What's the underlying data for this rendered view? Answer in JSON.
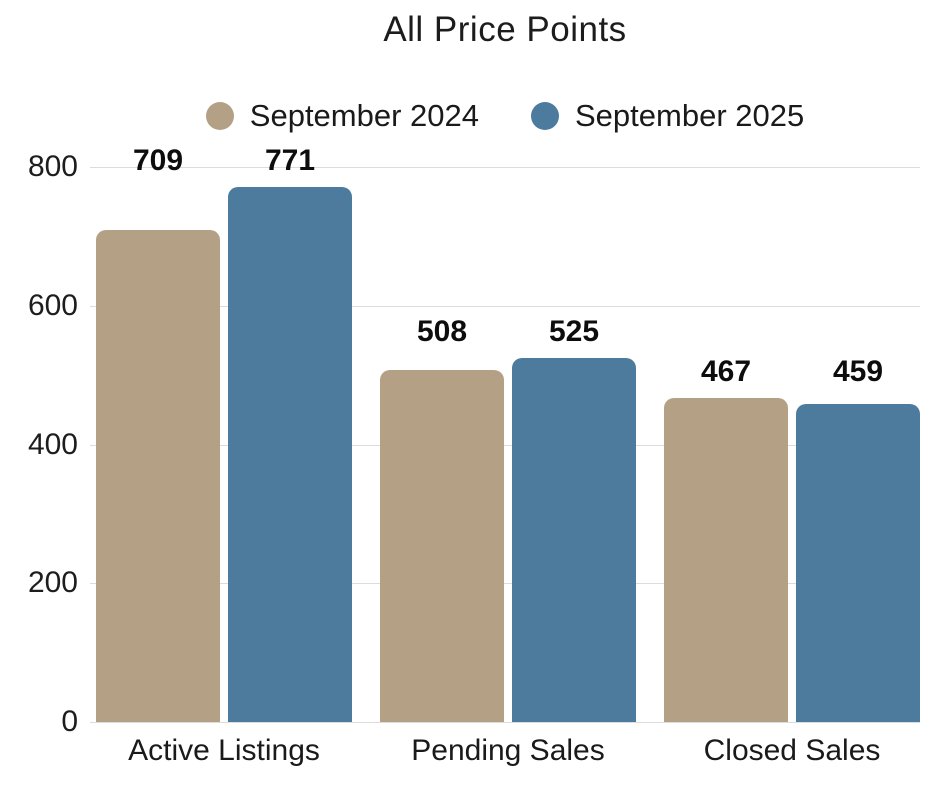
{
  "chart_data": {
    "type": "bar",
    "title": "All Price Points",
    "categories": [
      "Active Listings",
      "Pending Sales",
      "Closed Sales"
    ],
    "series": [
      {
        "name": "September 2024",
        "color": "#B4A084",
        "values": [
          709,
          508,
          467
        ]
      },
      {
        "name": "September 2025",
        "color": "#4D7B9E",
        "values": [
          771,
          525,
          459
        ]
      }
    ],
    "xlabel": "",
    "ylabel": "",
    "ylim": [
      0,
      800
    ],
    "yticks": [
      0,
      200,
      400,
      600,
      800
    ],
    "grid": true,
    "legend_position": "top",
    "value_labels_shown": true,
    "colors": {
      "background": "#FFFFFF",
      "grid": "#DCDCDC",
      "axis_text": "#1D1D1D",
      "title_text": "#1C1C1C",
      "value_label_text": "#0D0D0D"
    }
  }
}
